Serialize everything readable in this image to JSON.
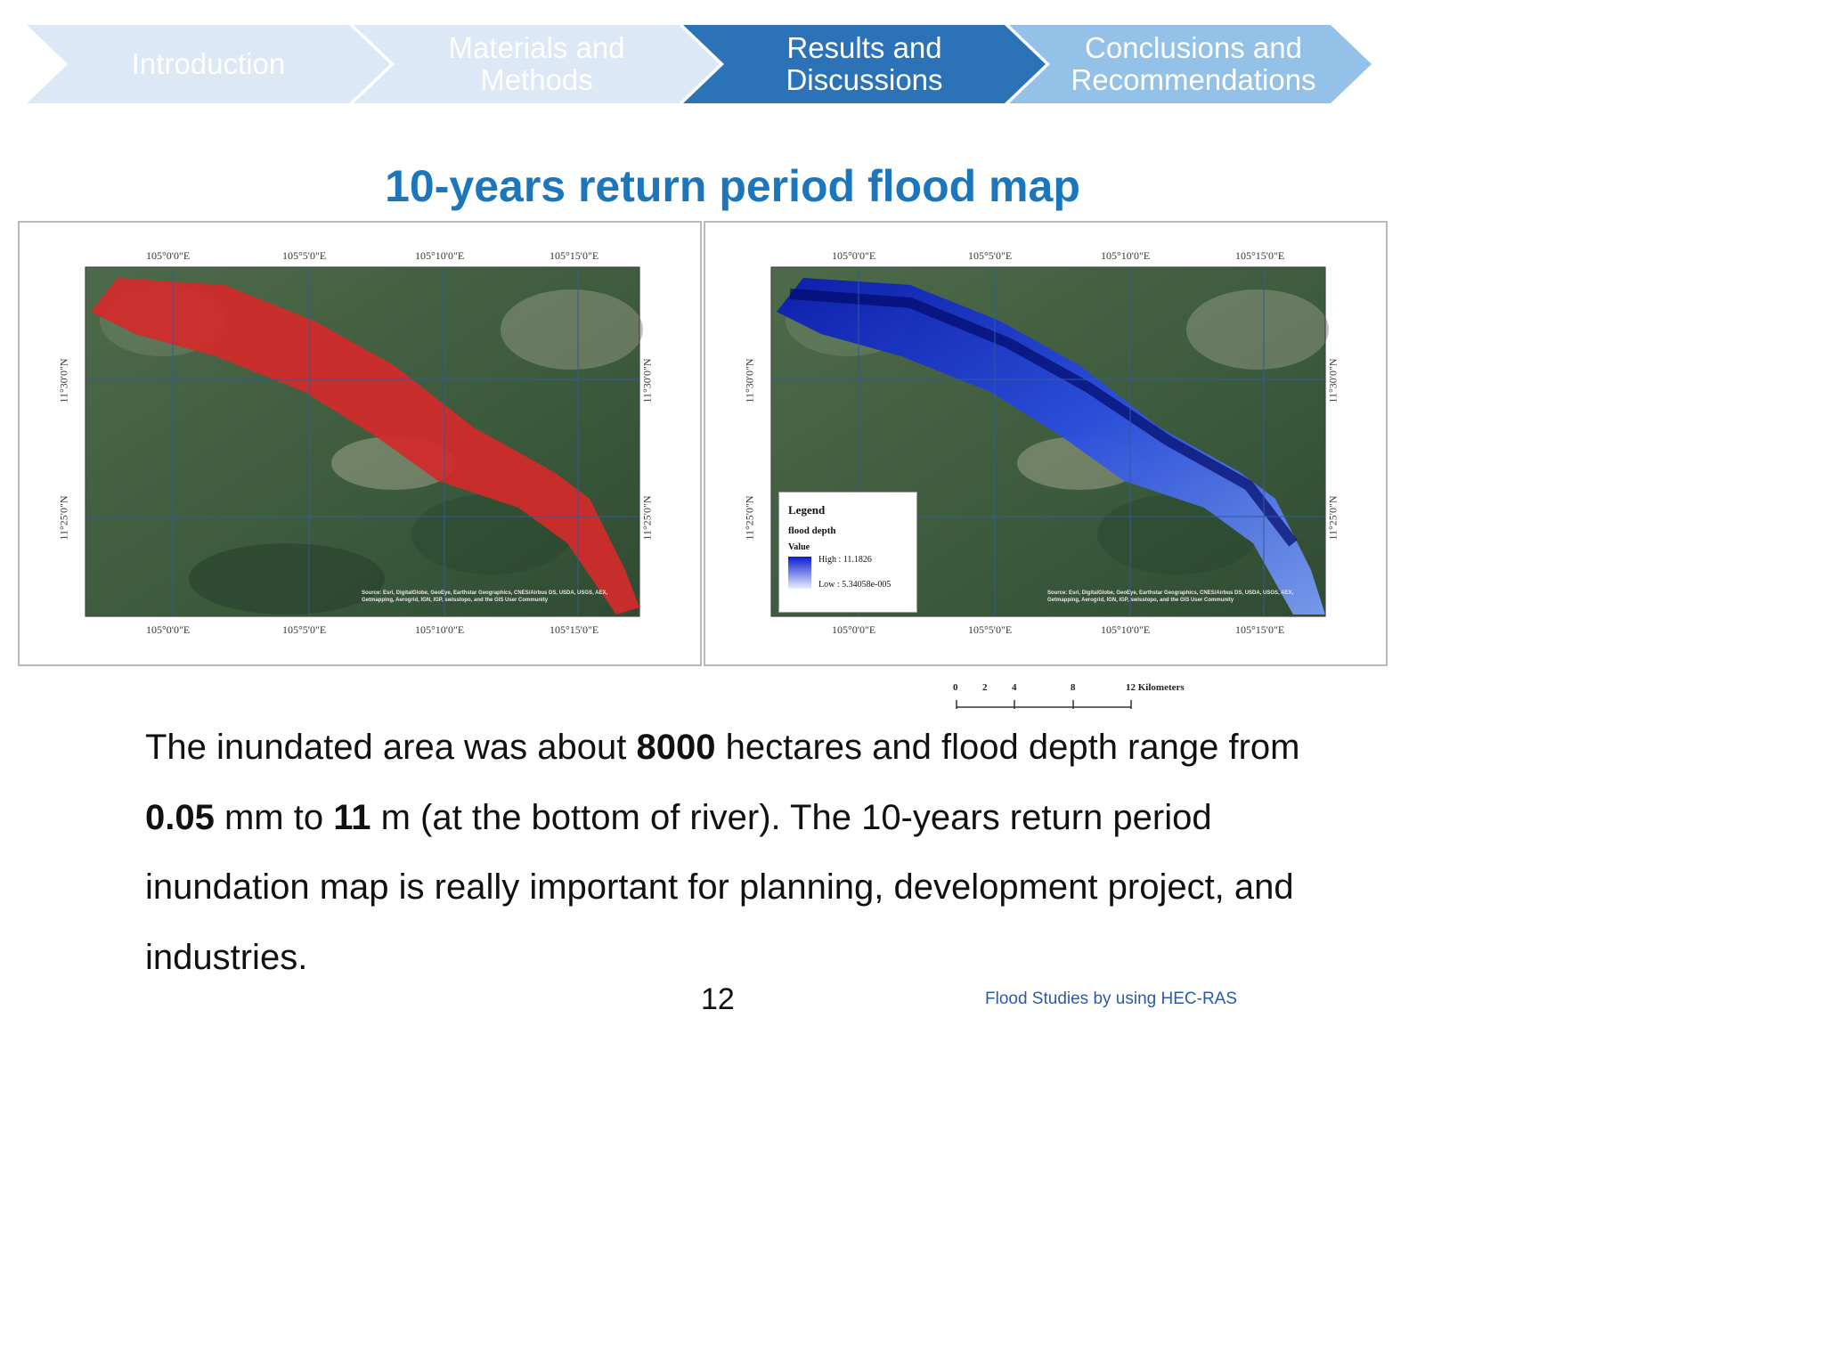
{
  "nav": {
    "steps": [
      {
        "label": "Introduction",
        "state": "inactive"
      },
      {
        "label": "Materials and Methods",
        "state": "inactive"
      },
      {
        "label": "Results and Discussions",
        "state": "active"
      },
      {
        "label": "Conclusions and Recommendations",
        "state": "next"
      }
    ],
    "colors": {
      "inactive": "#dce8f5",
      "active": "#2c72b7",
      "next": "#94c1e8"
    }
  },
  "slide": {
    "title": "10-years return period flood map",
    "paragraph": {
      "t1": "The inundated area was about ",
      "b1": "8000",
      "t2": " hectares  and flood depth range from ",
      "b2": "0.05",
      "t3": " mm to ",
      "b3": "11",
      "t4": " m (at the bottom of river). The 10-years return period inundation map is really important for planning, development project, and industries."
    },
    "page_number": "12",
    "footer": "Flood Studies by using HEC-RAS"
  },
  "maps": {
    "lon_ticks": [
      "105°0'0\"E",
      "105°5'0\"E",
      "105°10'0\"E",
      "105°15'0\"E"
    ],
    "lat_ticks": [
      "11°30'0\"N",
      "11°25'0\"N"
    ],
    "attribution": "Source: Esri, DigitalGlobe, GeoEye, Earthstar Geographics, CNES/Airbus DS, USDA, USGS, AEX, Getmapping, Aerogrid, IGN, IGP, swisstopo, and the GIS User Community",
    "left_map": {
      "overlay_color": "#d42a2a"
    },
    "right_map": {
      "overlay_color": "#1a3fd6"
    },
    "legend": {
      "title": "Legend",
      "layer": "flood depth",
      "field": "Value",
      "high": "High : 11.1826",
      "low": "Low : 5.34058e-005"
    },
    "scalebar": {
      "labels": [
        "0",
        "2",
        "4",
        "8",
        "12 Kilometers"
      ]
    }
  }
}
